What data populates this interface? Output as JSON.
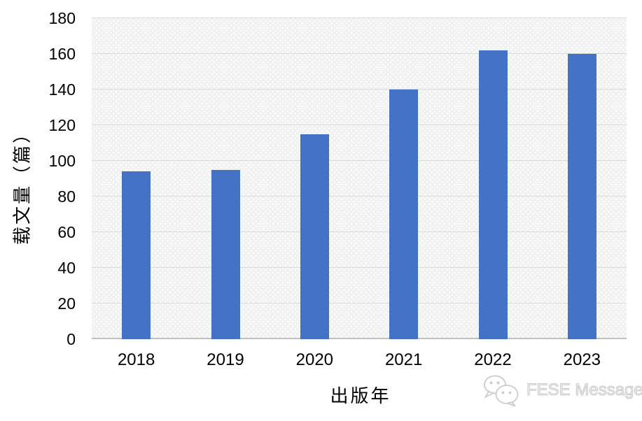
{
  "chart_data": {
    "type": "bar",
    "title": "",
    "categories": [
      "2018",
      "2019",
      "2020",
      "2021",
      "2022",
      "2023"
    ],
    "values": [
      94,
      95,
      115,
      140,
      162,
      160
    ],
    "xlabel": "出版年",
    "ylabel": "载文量（篇）",
    "ylim": [
      0,
      180
    ],
    "yticks": [
      0,
      20,
      40,
      60,
      80,
      100,
      120,
      140,
      160,
      180
    ],
    "grid": true,
    "legend": "none",
    "bar_color": "#4472C4",
    "plot_background": "#F2F2F2",
    "gridline_color": "#DADADA",
    "axis_line_color": "#C2C2C2",
    "text_color": "#000000"
  },
  "watermark": {
    "label": "FESE Message",
    "icon": "wechat-chat-bubbles-icon",
    "color": "#CCCCCC"
  }
}
